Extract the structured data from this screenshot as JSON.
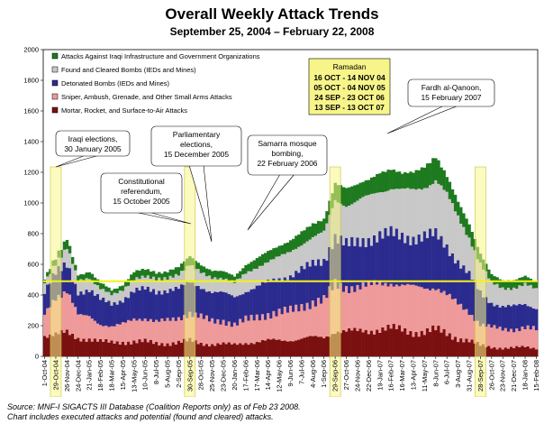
{
  "chart_data": {
    "type": "bar",
    "stacked": true,
    "title": "Overall Weekly Attack Trends",
    "subtitle": "September 25, 2004 –  February 22, 2008",
    "ylim": [
      0,
      2000
    ],
    "yticks": [
      "0",
      "200",
      "400",
      "600",
      "800",
      "1000",
      "1200",
      "1400",
      "1600",
      "1800",
      "2000"
    ],
    "grid": false,
    "legend_position": "top-left",
    "reference_line": {
      "value": 490,
      "color": "#f2f21a"
    },
    "xtick_labels": [
      "1-Oct-04",
      "29-Oct-04",
      "26-Nov-04",
      "24-Dec-04",
      "21-Jan-05",
      "18-Feb-05",
      "18-Mar-05",
      "15-Apr-05",
      "13-May-05",
      "10-Jun-05",
      "8-Jul-05",
      "5-Aug-05",
      "2-Sep-05",
      "30-Sep-05",
      "28-Oct-05",
      "25-Nov-05",
      "23-Dec-05",
      "20-Jan-06",
      "17-Feb-06",
      "17-Mar-06",
      "14-Apr-06",
      "12-May-06",
      "9-Jun-06",
      "7-Jul-06",
      "4-Aug-06",
      "1-Sep-06",
      "29-Sep-06",
      "27-Oct-06",
      "24-Nov-06",
      "22-Dec-06",
      "19-Jan-07",
      "16-Feb-07",
      "16-Mar-07",
      "13-Apr-07",
      "11-May-07",
      "8-Jun-07",
      "6-Jul-07",
      "3-Aug-07",
      "31-Aug-07",
      "28-Sep-07",
      "26-Oct-07",
      "23-Nov-07",
      "21-Dec-07",
      "18-Jan-08",
      "15-Feb-08"
    ],
    "highlighted_ticks": [
      "29-Oct-04",
      "30-Sep-05",
      "29-Sep-06",
      "28-Sep-07"
    ],
    "series": [
      {
        "name": "Attacks Against Iraqi Infrastructure and Government Organizations",
        "color": "#1e7a1e"
      },
      {
        "name": "Found and Cleared Bombs (IEDs and Mines)",
        "color": "#c8c8c8"
      },
      {
        "name": "Detonated Bombs (IEDs and Mines)",
        "color": "#2b2b8f"
      },
      {
        "name": "Sniper, Ambush, Grenade, and Other Small Arms Attacks",
        "color": "#ef9a9a"
      },
      {
        "name": "Mortar, Rocket, and Surface-to-Air Attacks",
        "color": "#7a1010"
      }
    ],
    "anchors": [
      {
        "label": "1-Oct-04",
        "values": [
          25,
          60,
          150,
          140,
          140
        ]
      },
      {
        "label": "29-Oct-04",
        "values": [
          35,
          60,
          160,
          250,
          140
        ]
      },
      {
        "label": "26-Nov-04",
        "values": [
          60,
          110,
          170,
          280,
          150
        ]
      },
      {
        "label": "24-Dec-04",
        "values": [
          35,
          80,
          150,
          150,
          120
        ]
      },
      {
        "label": "21-Jan-05",
        "values": [
          40,
          80,
          170,
          150,
          115
        ]
      },
      {
        "label": "18-Feb-05",
        "values": [
          35,
          70,
          160,
          110,
          95
        ]
      },
      {
        "label": "18-Mar-05",
        "values": [
          30,
          60,
          150,
          100,
          90
        ]
      },
      {
        "label": "15-Apr-05",
        "values": [
          35,
          65,
          160,
          120,
          95
        ]
      },
      {
        "label": "13-May-05",
        "values": [
          45,
          80,
          180,
          150,
          95
        ]
      },
      {
        "label": "10-Jun-05",
        "values": [
          45,
          80,
          190,
          150,
          95
        ]
      },
      {
        "label": "8-Jul-05",
        "values": [
          45,
          80,
          200,
          140,
          85
        ]
      },
      {
        "label": "5-Aug-05",
        "values": [
          45,
          80,
          200,
          150,
          85
        ]
      },
      {
        "label": "2-Sep-05",
        "values": [
          45,
          95,
          190,
          160,
          90
        ]
      },
      {
        "label": "30-Sep-05",
        "values": [
          55,
          115,
          200,
          180,
          100
        ]
      },
      {
        "label": "28-Oct-05",
        "values": [
          50,
          95,
          200,
          170,
          85
        ]
      },
      {
        "label": "25-Nov-05",
        "values": [
          45,
          95,
          190,
          150,
          80
        ]
      },
      {
        "label": "23-Dec-05",
        "values": [
          45,
          95,
          180,
          150,
          80
        ]
      },
      {
        "label": "20-Jan-06",
        "values": [
          40,
          95,
          180,
          130,
          75
        ]
      },
      {
        "label": "17-Feb-06",
        "values": [
          55,
          115,
          190,
          150,
          90
        ]
      },
      {
        "label": "17-Mar-06",
        "values": [
          60,
          125,
          200,
          160,
          95
        ]
      },
      {
        "label": "14-Apr-06",
        "values": [
          65,
          135,
          210,
          170,
          100
        ]
      },
      {
        "label": "12-May-06",
        "values": [
          70,
          145,
          220,
          180,
          105
        ]
      },
      {
        "label": "9-Jun-06",
        "values": [
          75,
          155,
          230,
          190,
          110
        ]
      },
      {
        "label": "7-Jul-06",
        "values": [
          80,
          165,
          240,
          210,
          115
        ]
      },
      {
        "label": "4-Aug-06",
        "values": [
          85,
          175,
          250,
          230,
          120
        ]
      },
      {
        "label": "1-Sep-06",
        "values": [
          85,
          185,
          260,
          240,
          125
        ]
      },
      {
        "label": "29-Sep-06",
        "values": [
          110,
          240,
          310,
          300,
          170
        ]
      },
      {
        "label": "27-Oct-06",
        "values": [
          110,
          260,
          280,
          290,
          160
        ]
      },
      {
        "label": "24-Nov-06",
        "values": [
          110,
          270,
          290,
          290,
          160
        ]
      },
      {
        "label": "22-Dec-06",
        "values": [
          110,
          280,
          300,
          290,
          170
        ]
      },
      {
        "label": "19-Jan-07",
        "values": [
          120,
          290,
          310,
          300,
          180
        ]
      },
      {
        "label": "16-Feb-07",
        "values": [
          120,
          300,
          320,
          300,
          180
        ]
      },
      {
        "label": "16-Mar-07",
        "values": [
          110,
          300,
          320,
          290,
          170
        ]
      },
      {
        "label": "13-Apr-07",
        "values": [
          120,
          310,
          320,
          290,
          160
        ]
      },
      {
        "label": "11-May-07",
        "values": [
          130,
          330,
          330,
          290,
          160
        ]
      },
      {
        "label": "8-Jun-07",
        "values": [
          150,
          360,
          340,
          280,
          170
        ]
      },
      {
        "label": "6-Jul-07",
        "values": [
          120,
          330,
          320,
          250,
          150
        ]
      },
      {
        "label": "3-Aug-07",
        "values": [
          100,
          290,
          280,
          220,
          120
        ]
      },
      {
        "label": "31-Aug-07",
        "values": [
          85,
          250,
          240,
          190,
          100
        ]
      },
      {
        "label": "28-Sep-07",
        "values": [
          65,
          190,
          200,
          140,
          70
        ]
      },
      {
        "label": "26-Oct-07",
        "values": [
          55,
          130,
          160,
          130,
          60
        ]
      },
      {
        "label": "23-Nov-07",
        "values": [
          50,
          120,
          150,
          120,
          55
        ]
      },
      {
        "label": "21-Dec-07",
        "values": [
          50,
          120,
          150,
          120,
          55
        ]
      },
      {
        "label": "18-Jan-08",
        "values": [
          55,
          130,
          150,
          130,
          60
        ]
      },
      {
        "label": "15-Feb-08",
        "values": [
          50,
          120,
          140,
          120,
          55
        ]
      }
    ],
    "annotations": [
      {
        "lines": [
          "Iraqi elections,",
          "30 January 2005"
        ]
      },
      {
        "lines": [
          "Constitutional",
          "referendum,",
          "15 October 2005"
        ]
      },
      {
        "lines": [
          "Parliamentary",
          "elections,",
          "15 December 2005"
        ]
      },
      {
        "lines": [
          "Samarra mosque",
          "bombing,",
          "22 February 2006"
        ]
      },
      {
        "lines": [
          "Fardh al-Qanoon,",
          "15 February 2007"
        ]
      }
    ],
    "ramadan": {
      "title": "Ramadan",
      "periods": [
        "16 OCT - 14 NOV 04",
        "05 OCT - 04 NOV 05",
        "24 SEP - 23 OCT 06",
        "13 SEP - 13 OCT 07"
      ]
    }
  },
  "source": {
    "line1": "Source:  MNF-I SIGACTS III Database (Coalition Reports only) as of Feb 23 2008.",
    "line2": "Chart includes executed attacks and potential (found and cleared) attacks."
  }
}
